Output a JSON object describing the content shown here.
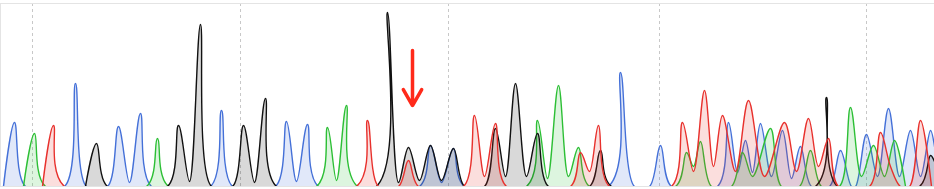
{
  "chart_data": {
    "type": "area",
    "xlim": [
      0,
      934
    ],
    "ylim": [
      0,
      183
    ],
    "xticks": [
      32,
      240,
      448,
      659,
      866
    ],
    "grid": true,
    "tick_labels": false,
    "series": [
      {
        "color": "#4470d8",
        "x": [
          3,
          14,
          25,
          64,
          75,
          86,
          107,
          118,
          129,
          140,
          151,
          210,
          221,
          232,
          275,
          286,
          296,
          307,
          318,
          419,
          430,
          441,
          453,
          464,
          608,
          620,
          634,
          649,
          660,
          671,
          717,
          728,
          737,
          745,
          752,
          760,
          771,
          782,
          791,
          800,
          811,
          829,
          840,
          851,
          855,
          866,
          877,
          888,
          899,
          910,
          920,
          930,
          934
        ],
        "values": [
          0,
          64,
          0,
          0,
          103,
          0,
          0,
          60,
          4,
          73,
          0,
          0,
          76,
          0,
          0,
          65,
          5,
          62,
          0,
          0,
          41,
          4,
          38,
          0,
          0,
          114,
          0,
          0,
          41,
          0,
          0,
          64,
          14,
          46,
          14,
          63,
          10,
          56,
          8,
          40,
          0,
          0,
          36,
          0,
          0,
          52,
          10,
          78,
          10,
          56,
          10,
          56,
          40
        ]
      },
      {
        "color": "#2cbf35",
        "x": [
          23,
          34,
          45,
          146,
          157,
          168,
          316,
          327,
          336,
          346,
          357,
          526,
          537,
          547,
          558,
          568,
          578,
          589,
          675,
          686,
          693,
          700,
          711,
          731,
          742,
          752,
          770,
          781,
          799,
          810,
          821,
          839,
          850,
          861,
          873,
          884,
          894,
          905
        ],
        "values": [
          0,
          53,
          0,
          0,
          48,
          0,
          0,
          59,
          6,
          81,
          0,
          0,
          66,
          8,
          101,
          10,
          39,
          0,
          0,
          34,
          20,
          45,
          0,
          0,
          34,
          10,
          58,
          0,
          0,
          36,
          0,
          0,
          79,
          10,
          41,
          10,
          46,
          0
        ]
      },
      {
        "color": "#111111",
        "x": [
          85,
          96,
          107,
          167,
          178,
          189,
          200,
          211,
          232,
          243,
          254,
          265,
          276,
          376,
          387,
          398,
          408,
          419,
          430,
          441,
          453,
          464,
          484,
          495,
          505,
          515,
          526,
          537,
          548,
          589,
          600,
          611,
          815,
          826,
          837,
          919,
          930,
          934
        ],
        "values": [
          0,
          43,
          0,
          0,
          61,
          5,
          162,
          0,
          0,
          61,
          4,
          88,
          0,
          0,
          174,
          4,
          39,
          6,
          41,
          6,
          38,
          0,
          0,
          58,
          10,
          103,
          10,
          53,
          0,
          0,
          36,
          0,
          0,
          89,
          0,
          0,
          31,
          25
        ]
      },
      {
        "color": "#e8302c",
        "x": [
          42,
          53,
          64,
          356,
          367,
          378,
          398,
          408,
          418,
          463,
          474,
          484,
          495,
          506,
          570,
          580,
          589,
          598,
          609,
          671,
          682,
          693,
          704,
          713,
          722,
          735,
          748,
          764,
          784,
          796,
          808,
          818,
          828,
          838,
          869,
          880,
          890,
          900,
          909,
          920,
          931
        ],
        "values": [
          0,
          61,
          0,
          0,
          66,
          0,
          0,
          26,
          0,
          0,
          71,
          10,
          63,
          0,
          0,
          34,
          15,
          61,
          0,
          0,
          64,
          15,
          96,
          20,
          71,
          15,
          86,
          10,
          64,
          15,
          68,
          20,
          48,
          0,
          0,
          54,
          20,
          0,
          0,
          66,
          0
        ]
      }
    ],
    "annotations": [
      {
        "type": "arrow",
        "x": 412,
        "y": [
          136,
          81
        ],
        "color": "#ff2a1a"
      }
    ]
  }
}
